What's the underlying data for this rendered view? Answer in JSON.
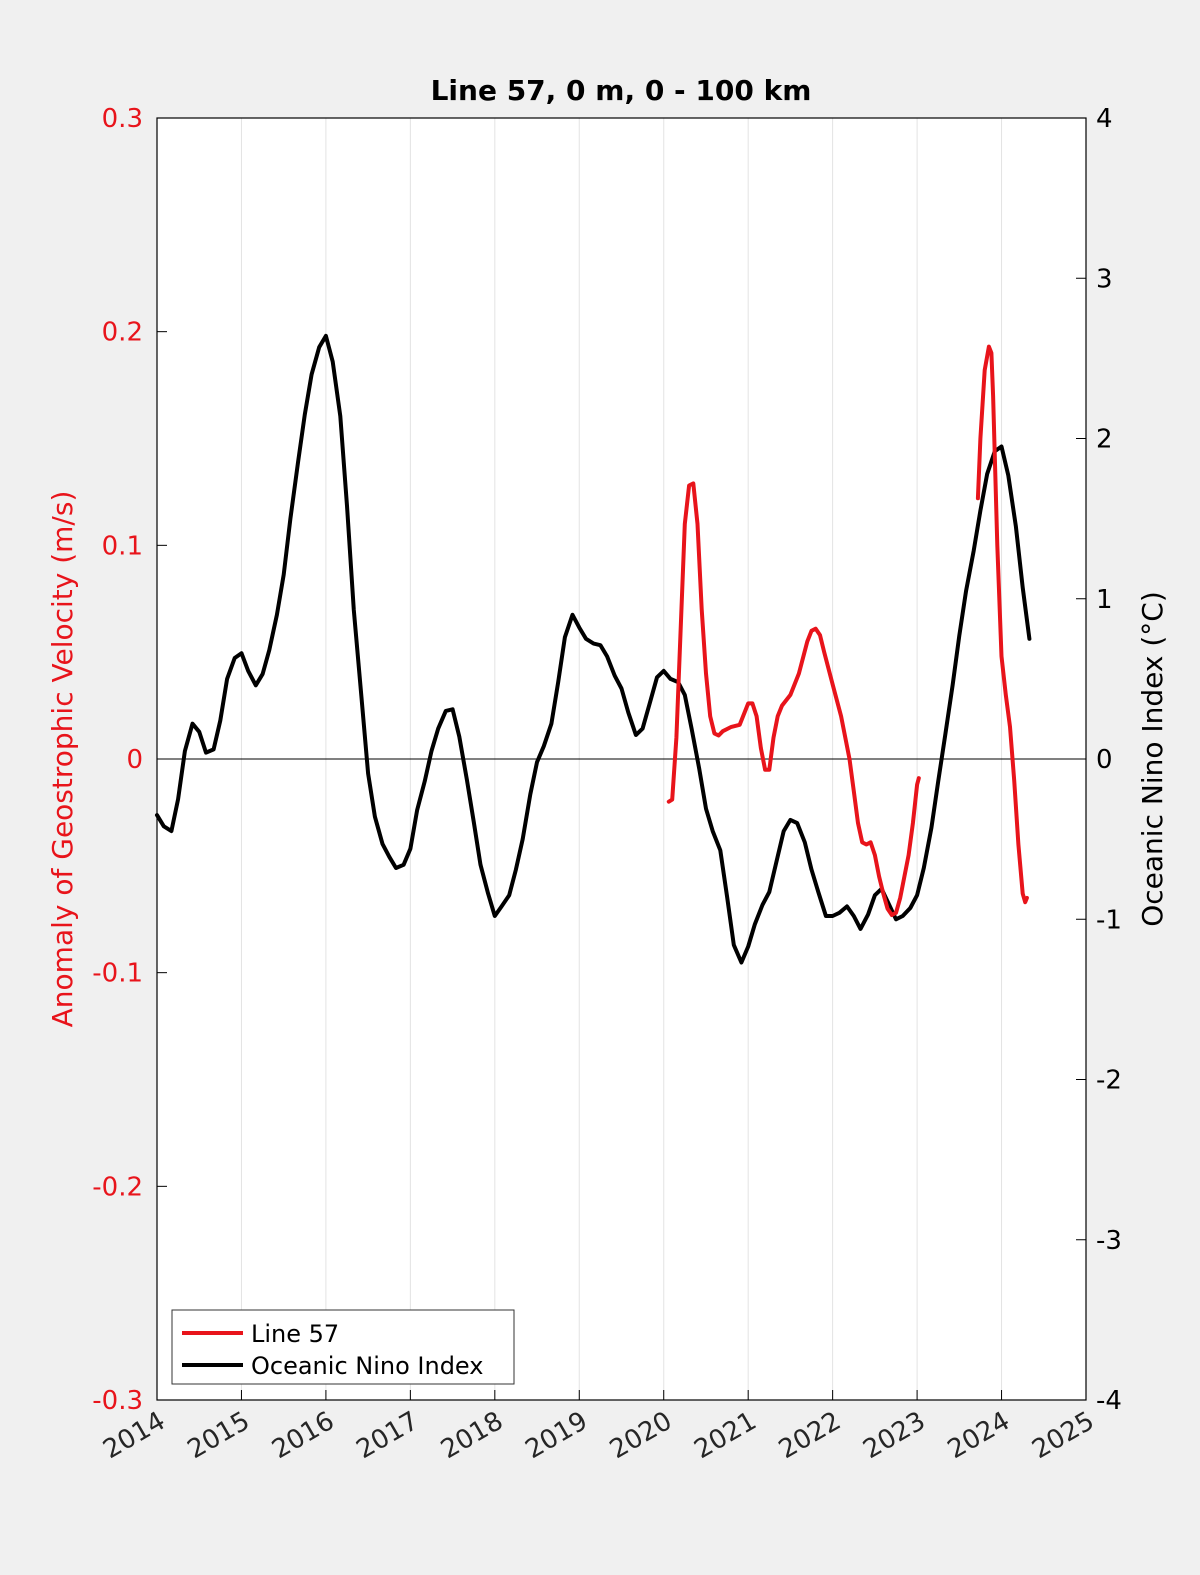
{
  "chart_data": {
    "type": "line",
    "title": "Line 57, 0 m, 0 - 100 km",
    "xlabel": "",
    "ylabel_left": "Anomaly of Geostrophic Velocity (m/s)",
    "ylabel_right": "Oceanic Nino Index (°C)",
    "xlim": [
      2014,
      2025
    ],
    "ylim_left": [
      -0.3,
      0.3
    ],
    "ylim_right": [
      -4,
      4
    ],
    "x_ticks": [
      2014,
      2015,
      2016,
      2017,
      2018,
      2019,
      2020,
      2021,
      2022,
      2023,
      2024,
      2025
    ],
    "y_ticks_left": [
      "0.3",
      "0.2",
      "0.1",
      "0",
      "-0.1",
      "-0.2",
      "-0.3"
    ],
    "y_ticks_right": [
      "4",
      "3",
      "2",
      "1",
      "0",
      "-1",
      "-2",
      "-3",
      "-4"
    ],
    "grid": "vertical",
    "legend_position": "bottom-left",
    "series": [
      {
        "name": "Line 57",
        "axis": "left",
        "color": "#e8141b",
        "x": [
          2020.06,
          2020.1,
          2020.15,
          2020.2,
          2020.25,
          2020.3,
          2020.35,
          2020.4,
          2020.45,
          2020.5,
          2020.55,
          2020.6,
          2020.65,
          2020.7,
          2020.8,
          2020.9,
          2021.0,
          2021.05,
          2021.1,
          2021.15,
          2021.2,
          2021.25,
          2021.3,
          2021.35,
          2021.4,
          2021.5,
          2021.6,
          2021.7,
          2021.75,
          2021.8,
          2021.85,
          2021.9,
          2022.0,
          2022.1,
          2022.2,
          2022.25,
          2022.3,
          2022.35,
          2022.4,
          2022.45,
          2022.5,
          2022.55,
          2022.6,
          2022.65,
          2022.7,
          2022.75,
          2022.8,
          2022.85,
          2022.9,
          2022.95,
          2023.0,
          2023.02
        ],
        "values": [
          -0.02,
          -0.019,
          0.01,
          0.06,
          0.11,
          0.128,
          0.129,
          0.11,
          0.07,
          0.04,
          0.02,
          0.012,
          0.011,
          0.013,
          0.015,
          0.016,
          0.026,
          0.026,
          0.02,
          0.005,
          -0.005,
          -0.005,
          0.01,
          0.02,
          0.025,
          0.03,
          0.04,
          0.055,
          0.06,
          0.061,
          0.058,
          0.05,
          0.035,
          0.02,
          0.0,
          -0.015,
          -0.03,
          -0.039,
          -0.04,
          -0.039,
          -0.045,
          -0.055,
          -0.063,
          -0.07,
          -0.073,
          -0.072,
          -0.065,
          -0.055,
          -0.045,
          -0.03,
          -0.012,
          -0.009
        ],
        "x2": [
          2023.72,
          2023.75,
          2023.8,
          2023.85,
          2023.88,
          2023.9,
          2023.95,
          2024.0,
          2024.05,
          2024.1,
          2024.15,
          2024.2,
          2024.25,
          2024.28,
          2024.3
        ],
        "values2": [
          0.122,
          0.15,
          0.182,
          0.193,
          0.19,
          0.17,
          0.1,
          0.048,
          0.03,
          0.015,
          -0.01,
          -0.04,
          -0.063,
          -0.067,
          -0.065
        ]
      },
      {
        "name": "Oceanic Nino Index",
        "axis": "right",
        "color": "#000000",
        "x": [
          2014.0,
          2014.08,
          2014.17,
          2014.25,
          2014.33,
          2014.42,
          2014.5,
          2014.58,
          2014.67,
          2014.75,
          2014.83,
          2014.92,
          2015.0,
          2015.08,
          2015.17,
          2015.25,
          2015.33,
          2015.42,
          2015.5,
          2015.58,
          2015.67,
          2015.75,
          2015.83,
          2015.92,
          2016.0,
          2016.08,
          2016.17,
          2016.25,
          2016.33,
          2016.42,
          2016.5,
          2016.58,
          2016.67,
          2016.75,
          2016.83,
          2016.92,
          2017.0,
          2017.08,
          2017.17,
          2017.25,
          2017.33,
          2017.42,
          2017.5,
          2017.58,
          2017.67,
          2017.75,
          2017.83,
          2017.92,
          2018.0,
          2018.08,
          2018.17,
          2018.25,
          2018.33,
          2018.42,
          2018.5,
          2018.58,
          2018.67,
          2018.75,
          2018.83,
          2018.92,
          2019.0,
          2019.08,
          2019.17,
          2019.25,
          2019.33,
          2019.42,
          2019.5,
          2019.58,
          2019.67,
          2019.75,
          2019.83,
          2019.92,
          2020.0,
          2020.08,
          2020.17,
          2020.25,
          2020.33,
          2020.42,
          2020.5,
          2020.58,
          2020.67,
          2020.75,
          2020.83,
          2020.92,
          2021.0,
          2021.08,
          2021.17,
          2021.25,
          2021.33,
          2021.42,
          2021.5,
          2021.58,
          2021.67,
          2021.75,
          2021.83,
          2021.92,
          2022.0,
          2022.08,
          2022.17,
          2022.25,
          2022.33,
          2022.42,
          2022.5,
          2022.58,
          2022.67,
          2022.75,
          2022.83,
          2022.92,
          2023.0,
          2023.08,
          2023.17,
          2023.25,
          2023.33,
          2023.42,
          2023.5,
          2023.58,
          2023.67,
          2023.75,
          2023.83,
          2023.92,
          2024.0,
          2024.08,
          2024.17,
          2024.25,
          2024.33
        ],
        "values": [
          -0.35,
          -0.42,
          -0.45,
          -0.25,
          0.05,
          0.22,
          0.17,
          0.04,
          0.06,
          0.24,
          0.5,
          0.63,
          0.66,
          0.55,
          0.46,
          0.53,
          0.68,
          0.9,
          1.15,
          1.5,
          1.85,
          2.15,
          2.4,
          2.57,
          2.64,
          2.48,
          2.14,
          1.58,
          0.93,
          0.39,
          -0.09,
          -0.36,
          -0.53,
          -0.61,
          -0.68,
          -0.66,
          -0.56,
          -0.32,
          -0.14,
          0.05,
          0.19,
          0.3,
          0.31,
          0.14,
          -0.13,
          -0.39,
          -0.66,
          -0.84,
          -0.98,
          -0.92,
          -0.85,
          -0.69,
          -0.5,
          -0.22,
          -0.02,
          0.08,
          0.22,
          0.48,
          0.76,
          0.9,
          0.82,
          0.75,
          0.72,
          0.71,
          0.64,
          0.52,
          0.44,
          0.29,
          0.15,
          0.19,
          0.34,
          0.51,
          0.55,
          0.5,
          0.48,
          0.4,
          0.19,
          -0.06,
          -0.31,
          -0.45,
          -0.57,
          -0.86,
          -1.16,
          -1.27,
          -1.17,
          -1.03,
          -0.91,
          -0.83,
          -0.65,
          -0.45,
          -0.38,
          -0.4,
          -0.52,
          -0.69,
          -0.83,
          -0.98,
          -0.98,
          -0.96,
          -0.92,
          -0.98,
          -1.06,
          -0.97,
          -0.85,
          -0.81,
          -0.91,
          -1.0,
          -0.98,
          -0.93,
          -0.85,
          -0.68,
          -0.43,
          -0.14,
          0.14,
          0.46,
          0.77,
          1.05,
          1.3,
          1.55,
          1.78,
          1.92,
          1.95,
          1.77,
          1.45,
          1.07,
          0.75
        ]
      }
    ]
  }
}
